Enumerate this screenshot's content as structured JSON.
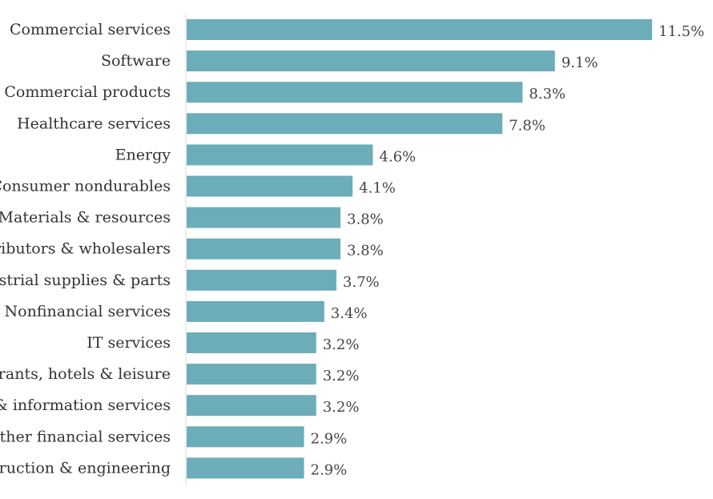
{
  "chart_data": {
    "type": "bar",
    "orientation": "horizontal",
    "title": "",
    "xlabel": "",
    "ylabel": "",
    "xlim": [
      0,
      11.5
    ],
    "grid": false,
    "bar_color": "#6badb9",
    "categories": [
      "Commercial services",
      "Software",
      "Commercial products",
      "Healthcare services",
      "Energy",
      "Consumer nondurables",
      "Materials & resources",
      "Distributors & wholesalers",
      "Industrial supplies & parts",
      "Nonfinancial services",
      "IT services",
      "Restaurants, hotels & leisure",
      "Media & information services",
      "Other financial services",
      "Construction & engineering"
    ],
    "values": [
      11.5,
      9.1,
      8.3,
      7.8,
      4.6,
      4.1,
      3.8,
      3.8,
      3.7,
      3.4,
      3.2,
      3.2,
      3.2,
      2.9,
      2.9
    ],
    "value_labels": [
      "11.5%",
      "9.1%",
      "8.3%",
      "7.8%",
      "4.6%",
      "4.1%",
      "3.8%",
      "3.8%",
      "3.7%",
      "3.4%",
      "3.2%",
      "3.2%",
      "3.2%",
      "2.9%",
      "2.9%"
    ]
  }
}
